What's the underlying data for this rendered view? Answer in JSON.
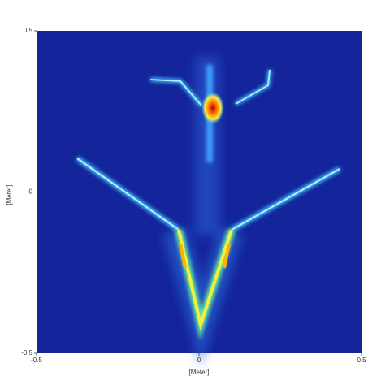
{
  "chart_data": {
    "type": "heatmap",
    "x_label": "[Meter]",
    "y_label": "[Meter]",
    "xlim": [
      -0.5,
      0.5
    ],
    "xticks": [
      -0.5,
      0,
      0.5
    ],
    "ylim": [
      -0.5,
      0.5
    ],
    "yticks": [
      -0.5,
      0,
      0.5
    ]
  }
}
